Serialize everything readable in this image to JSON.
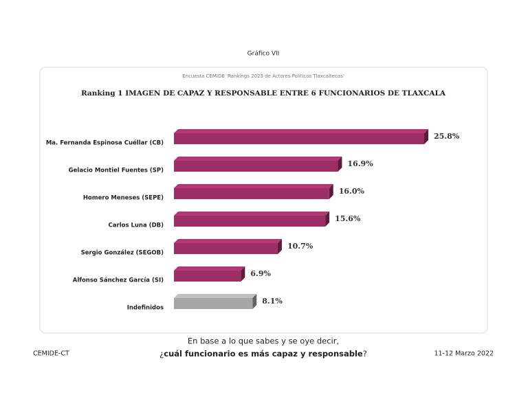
{
  "header": "Gráfico VII",
  "chart_data": {
    "type": "bar",
    "orientation": "horizontal",
    "subtitle": "Encuesta CEMIDE 'Rankings 2023 de Actores Políticos Tlaxcaltecas'",
    "title": "Ranking 1  IMAGEN DE CAPAZ Y RESPONSABLE ENTRE 6 FUNCIONARIOS DE TLAXCALA",
    "categories": [
      "Ma. Fernanda Espinosa Cuéllar (CB)",
      "Gelacio Montiel Fuentes (SP)",
      "Homero Meneses (SEPE)",
      "Carlos Luna (DB)",
      "Sergio González (SEGOB)",
      "Alfonso Sánchez García (SI)",
      "Indefinidos"
    ],
    "values": [
      25.8,
      16.9,
      16.0,
      15.6,
      10.7,
      6.9,
      8.1
    ],
    "value_labels": [
      "25.8%",
      "16.9%",
      "16.0%",
      "15.6%",
      "10.7%",
      "6.9%",
      "8.1%"
    ],
    "colors": [
      "#9c2f66",
      "#9c2f66",
      "#9c2f66",
      "#9c2f66",
      "#9c2f66",
      "#9c2f66",
      "#a6a6a6"
    ]
  },
  "footer": {
    "source": "CEMIDE-CT",
    "date": "11-12 Marzo 2022",
    "question_line1": "En base a lo que sabes y se oye decir,",
    "question_line2": [
      "¿",
      "cuál funcionario es más capaz y responsable",
      "?"
    ]
  }
}
